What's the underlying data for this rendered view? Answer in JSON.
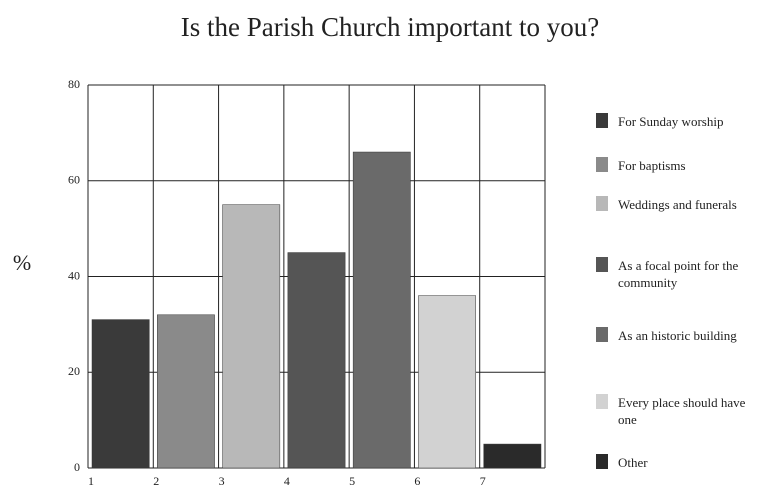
{
  "chart_data": {
    "type": "bar",
    "title": "Is the Parish Church important to you?",
    "ylabel": "%",
    "categories": [
      "1",
      "2",
      "3",
      "4",
      "5",
      "6",
      "7"
    ],
    "values": [
      31,
      32,
      55,
      45,
      66,
      36,
      5
    ],
    "colors": [
      "#3a3a3a",
      "#8a8a8a",
      "#b8b8b8",
      "#555555",
      "#6a6a6a",
      "#d2d2d2",
      "#2a2a2a"
    ],
    "legend": [
      "For Sunday worship",
      "For baptisms",
      "Weddings and funerals",
      "As a focal point for the community",
      "As an historic building",
      "Every place should have one",
      "Other"
    ],
    "ylim": [
      0,
      80
    ],
    "yticks": [
      0,
      20,
      40,
      60,
      80
    ],
    "grid": true
  }
}
